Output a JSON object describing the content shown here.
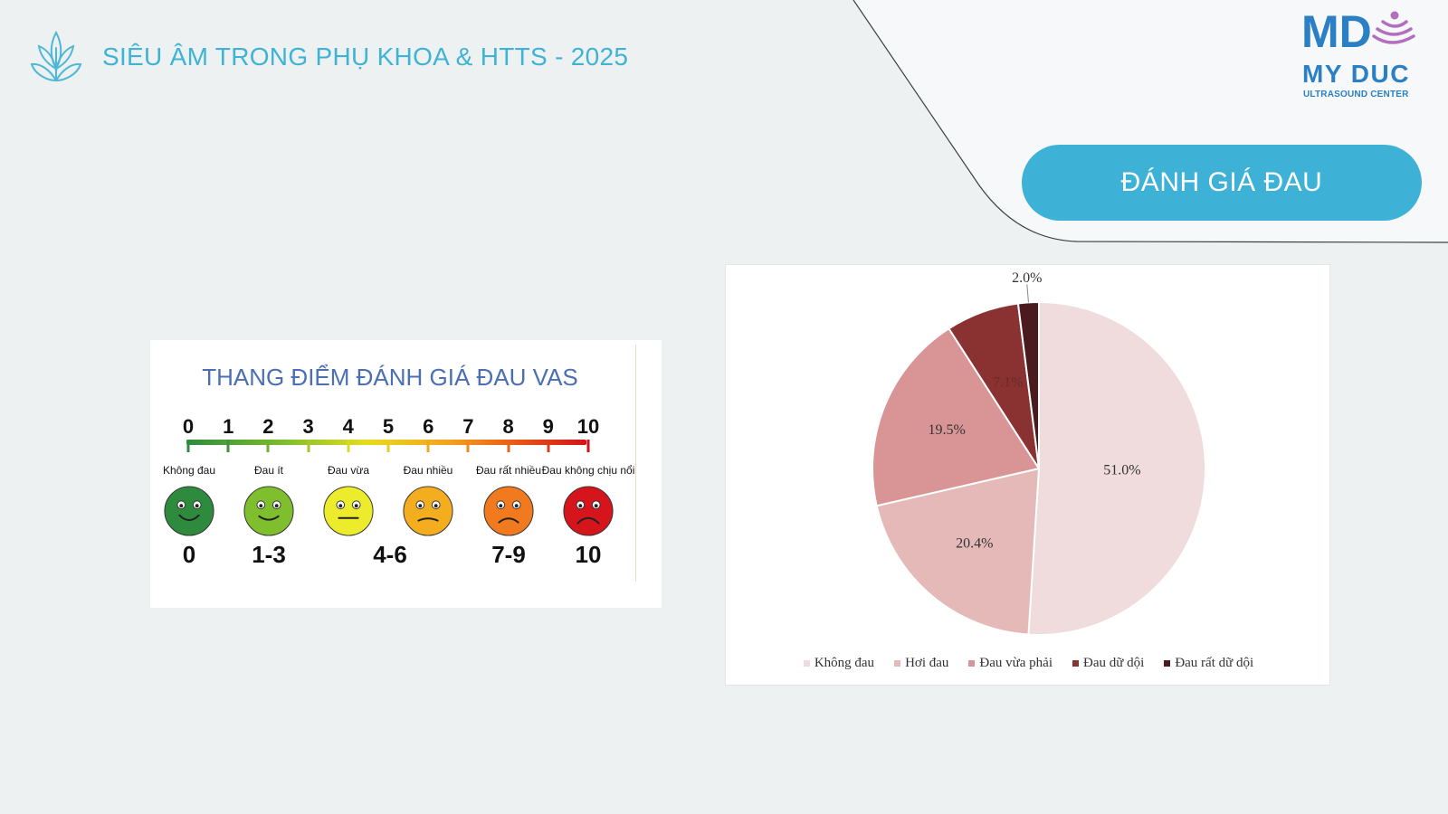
{
  "header": {
    "title": "SIÊU ÂM TRONG PHỤ KHOA & HTTS - 2025"
  },
  "logo": {
    "name": "MY DUC",
    "subtitle": "ULTRASOUND CENTER",
    "wordmark": "MD"
  },
  "section": {
    "title": "ĐÁNH GIÁ ĐAU"
  },
  "vas_scale": {
    "title": "THANG ĐIỂM ĐÁNH GIÁ ĐAU VAS",
    "ticks": [
      "0",
      "1",
      "2",
      "3",
      "4",
      "5",
      "6",
      "7",
      "8",
      "9",
      "10"
    ],
    "faces": [
      {
        "label": "Không đau",
        "color": "#2e8a3c"
      },
      {
        "label": "Đau ít",
        "color": "#7fbf2d"
      },
      {
        "label": "Đau vừa",
        "color": "#ecec2c"
      },
      {
        "label": "Đau nhiều",
        "color": "#f3ad1e"
      },
      {
        "label": "Đau rất nhiều",
        "color": "#f07a1d"
      },
      {
        "label": "Đau không chịu nổi",
        "color": "#d5141c"
      }
    ],
    "ranges": [
      "0",
      "1-3",
      "4-6",
      "7-9",
      "10"
    ]
  },
  "chart_data": {
    "type": "pie",
    "title": "",
    "legend_position": "bottom",
    "categories": [
      "Không đau",
      "Hơi đau",
      "Đau vừa phải",
      "Đau dữ dội",
      "Đau rất dữ dội"
    ],
    "values": [
      51.0,
      20.4,
      19.5,
      7.1,
      2.0
    ],
    "labels": [
      "51.0%",
      "20.4%",
      "19.5%",
      "7.1%",
      "2.0%"
    ],
    "colors": [
      "#f0dcdc",
      "#e6b9b9",
      "#d99595",
      "#8a3232",
      "#4a1a1e"
    ],
    "start": "12 o'clock",
    "direction": "clockwise"
  },
  "colors": {
    "accent": "#3eb2d6",
    "background": "#edf1f2"
  }
}
